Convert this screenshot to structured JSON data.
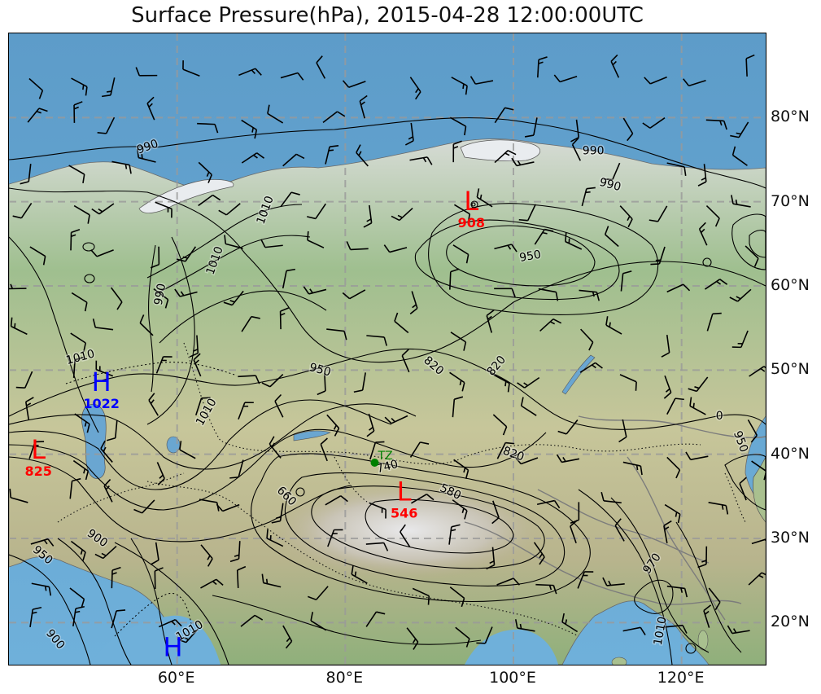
{
  "title": "Surface Pressure(hPa), 2015-04-28 12:00:00UTC",
  "map": {
    "projection": "PlateCarree",
    "lon_range": [
      40,
      130
    ],
    "lat_range": [
      15,
      90
    ],
    "background": "shaded-relief",
    "ocean_color": "#6aa6d1",
    "land_color": "#b9c79a",
    "grid": true
  },
  "axes": {
    "lon_ticks": [
      {
        "label": "60°E",
        "lon": 60
      },
      {
        "label": "80°E",
        "lon": 80
      },
      {
        "label": "100°E",
        "lon": 100
      },
      {
        "label": "120°E",
        "lon": 120
      }
    ],
    "lat_ticks": [
      {
        "label": "80°N",
        "lat": 80
      },
      {
        "label": "70°N",
        "lat": 70
      },
      {
        "label": "60°N",
        "lat": 60
      },
      {
        "label": "50°N",
        "lat": 50
      },
      {
        "label": "40°N",
        "lat": 40
      },
      {
        "label": "30°N",
        "lat": 30
      },
      {
        "label": "20°N",
        "lat": 20
      }
    ]
  },
  "pressure_centers": [
    {
      "type": "H",
      "value": "1022",
      "lon": 51.0,
      "lat": 47.5,
      "color": "#0000ff"
    },
    {
      "type": "L",
      "value": "825",
      "lon": 43.5,
      "lat": 39.5,
      "color": "#ff0000"
    },
    {
      "type": "L",
      "value": "908",
      "lon": 95.0,
      "lat": 69.0,
      "color": "#ff0000"
    },
    {
      "type": "L",
      "value": "546",
      "lon": 87.0,
      "lat": 34.5,
      "color": "#ff0000"
    },
    {
      "type": "H",
      "value": "",
      "lon": 59.5,
      "lat": 16.0,
      "color": "#0000ff"
    }
  ],
  "station": {
    "label": "TZ",
    "lon": 83.5,
    "lat": 39.0,
    "color": "#008000"
  },
  "contour_labels": [
    {
      "text": "990",
      "lon": 56.5,
      "lat": 76.5,
      "rot": -20
    },
    {
      "text": "990",
      "lon": 109.5,
      "lat": 76.0,
      "rot": 0
    },
    {
      "text": "990",
      "lon": 111.5,
      "lat": 72.0,
      "rot": 15
    },
    {
      "text": "950",
      "lon": 102.0,
      "lat": 63.5,
      "rot": -10
    },
    {
      "text": "1010",
      "lon": 70.5,
      "lat": 69.0,
      "rot": -70
    },
    {
      "text": "1010",
      "lon": 64.5,
      "lat": 63.0,
      "rot": -70
    },
    {
      "text": "990",
      "lon": 58.0,
      "lat": 59.0,
      "rot": -80
    },
    {
      "text": "1010",
      "lon": 48.5,
      "lat": 51.5,
      "rot": -15
    },
    {
      "text": "950",
      "lon": 77.0,
      "lat": 50.0,
      "rot": 15
    },
    {
      "text": "820",
      "lon": 90.5,
      "lat": 50.5,
      "rot": 40
    },
    {
      "text": "820",
      "lon": 98.0,
      "lat": 50.5,
      "rot": -50
    },
    {
      "text": "1010",
      "lon": 63.5,
      "lat": 45.0,
      "rot": -60
    },
    {
      "text": "820",
      "lon": 100.0,
      "lat": 40.0,
      "rot": 20
    },
    {
      "text": "740",
      "lon": 85.0,
      "lat": 38.5,
      "rot": -15
    },
    {
      "text": "580",
      "lon": 92.5,
      "lat": 35.5,
      "rot": 25
    },
    {
      "text": "660",
      "lon": 73.0,
      "lat": 35.0,
      "rot": 45
    },
    {
      "text": "900",
      "lon": 50.5,
      "lat": 30.0,
      "rot": 35
    },
    {
      "text": "950",
      "lon": 44.0,
      "lat": 28.0,
      "rot": 40
    },
    {
      "text": "900",
      "lon": 45.5,
      "lat": 18.0,
      "rot": 50
    },
    {
      "text": "1010",
      "lon": 61.5,
      "lat": 19.0,
      "rot": -30
    },
    {
      "text": "970",
      "lon": 116.5,
      "lat": 27.0,
      "rot": -55
    },
    {
      "text": "1010",
      "lon": 117.5,
      "lat": 19.0,
      "rot": -80
    },
    {
      "text": "950",
      "lon": 127.0,
      "lat": 41.5,
      "rot": 70
    },
    {
      "text": "0",
      "lon": 124.5,
      "lat": 44.5,
      "rot": 0
    }
  ],
  "colors": {
    "contour": "#000000",
    "grid": "#9a9a9a",
    "high": "#0000ff",
    "low": "#ff0000",
    "station": "#008000"
  }
}
